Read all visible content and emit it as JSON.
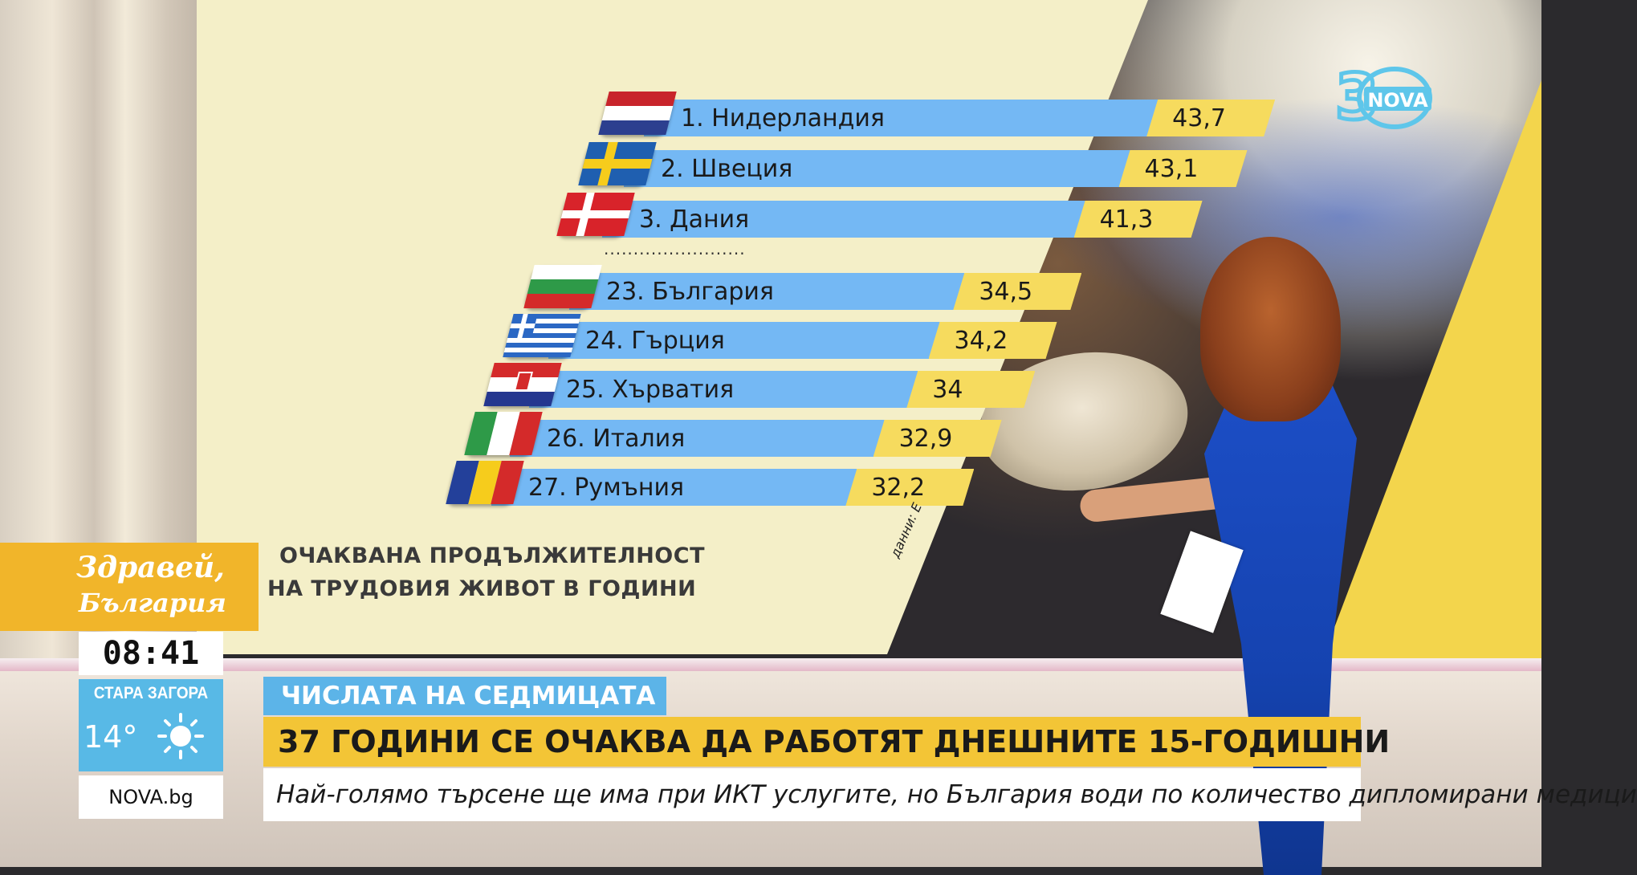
{
  "chart_data": {
    "type": "bar",
    "title": "ОЧАКВАНА ПРОДЪЛЖИТЕЛНОСТ НА ТРУДОВИЯ ЖИВОТ В ГОДИНИ",
    "title_lines": [
      "ОЧАКВАНА ПРОДЪЛЖИТЕЛНОСТ",
      "НА ТРУДОВИЯ ЖИВОТ В ГОДИНИ"
    ],
    "separator": "........................",
    "source": "данни: Е",
    "categories": [
      "1. Нидерландия",
      "2. Швеция",
      "3. Дания",
      "23. България",
      "24. Гърция",
      "25. Хърватия",
      "26. Италия",
      "27. Румъния"
    ],
    "value_labels": [
      "43,7",
      "43,1",
      "41,3",
      "34,5",
      "34,2",
      "34",
      "32,9",
      "32,2"
    ],
    "values": [
      43.7,
      43.1,
      41.3,
      34.5,
      34.2,
      34.0,
      32.9,
      32.2
    ],
    "flags": [
      "netherlands-flag-icon",
      "sweden-flag-icon",
      "denmark-flag-icon",
      "bulgaria-flag-icon",
      "greece-flag-icon",
      "croatia-flag-icon",
      "italy-flag-icon",
      "romania-flag-icon"
    ],
    "bar_color": "#74b8f4",
    "value_color": "#f6db5e"
  },
  "show": {
    "name_line1": "Здравей,",
    "name_line2": "България",
    "time": "08:41",
    "city": "СТАРА ЗАГОРА",
    "temperature": "14°",
    "weather_icon": "sun-icon",
    "site": "NOVA.bg",
    "channel_logo": "nova-30-logo"
  },
  "lower_third": {
    "tag": "ЧИСЛАТА НА СЕДМИЦАТА",
    "headline": "37 ГОДИНИ СЕ ОЧАКВА ДА РАБОТЯТ ДНЕШНИТЕ 15-ГОДИШНИ",
    "subline": "Най-голямо търсене ще има при ИКТ услугите, но България води по количество дипломирани медици"
  },
  "colors": {
    "panel": "#f4efc8",
    "accent_yellow": "#f3c536",
    "tag_blue": "#5cb4e8",
    "show_orange": "#f1b52a"
  }
}
